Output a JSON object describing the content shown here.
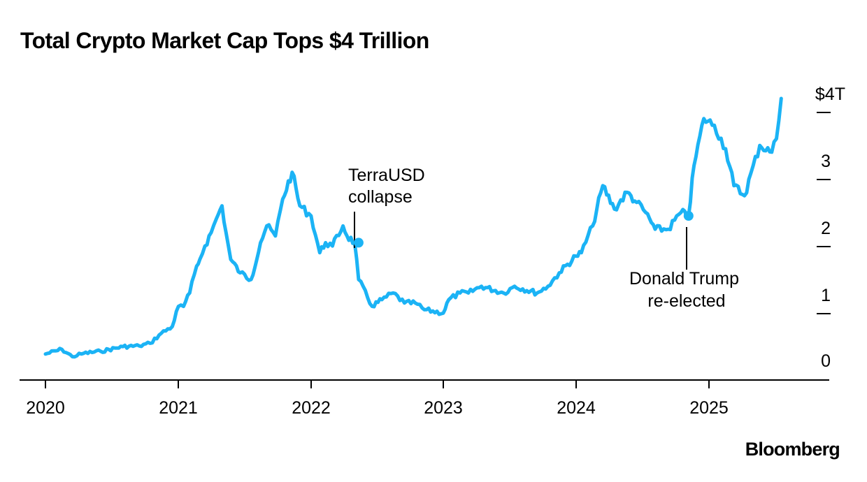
{
  "title": "Total Crypto Market Cap Tops $4 Trillion",
  "source": "Bloomberg",
  "chart_data": {
    "type": "line",
    "title": "Total Crypto Market Cap Tops $4 Trillion",
    "xlabel": "",
    "ylabel": "",
    "y_unit": "trillions of US dollars",
    "ylim": [
      0,
      4
    ],
    "y_ticks": [
      {
        "value": 0,
        "label": "0"
      },
      {
        "value": 1,
        "label": "1"
      },
      {
        "value": 2,
        "label": "2"
      },
      {
        "value": 3,
        "label": "3"
      },
      {
        "value": 4,
        "label": "$4T"
      }
    ],
    "x_ticks": [
      {
        "value": "2020-01-01",
        "label": "2020"
      },
      {
        "value": "2021-01-01",
        "label": "2021"
      },
      {
        "value": "2022-01-01",
        "label": "2022"
      },
      {
        "value": "2023-01-01",
        "label": "2023"
      },
      {
        "value": "2024-01-01",
        "label": "2024"
      },
      {
        "value": "2025-01-01",
        "label": "2025"
      }
    ],
    "grid": false,
    "line_color": "#1bb3f5",
    "series": [
      {
        "x": [
          "2020-01-01",
          "2020-02-15",
          "2020-03-15",
          "2020-04-15",
          "2020-06-01",
          "2020-08-01",
          "2020-09-15",
          "2020-10-15",
          "2020-11-15",
          "2020-12-15",
          "2021-01-01",
          "2021-01-15",
          "2021-02-01",
          "2021-02-20",
          "2021-03-01",
          "2021-03-15",
          "2021-04-01",
          "2021-04-15",
          "2021-05-01",
          "2021-05-12",
          "2021-05-25",
          "2021-06-20",
          "2021-07-20",
          "2021-08-15",
          "2021-09-01",
          "2021-09-25",
          "2021-10-15",
          "2021-11-10",
          "2021-12-01",
          "2022-01-01",
          "2022-01-25",
          "2022-02-10",
          "2022-03-01",
          "2022-03-30",
          "2022-04-10",
          "2022-05-01",
          "2022-05-12",
          "2022-06-18",
          "2022-07-15",
          "2022-08-15",
          "2022-09-15",
          "2022-10-15",
          "2022-11-09",
          "2022-12-31",
          "2023-01-15",
          "2023-02-15",
          "2023-03-10",
          "2023-04-15",
          "2023-06-15",
          "2023-07-15",
          "2023-09-15",
          "2023-10-15",
          "2023-11-15",
          "2023-12-31",
          "2024-01-15",
          "2024-02-15",
          "2024-03-14",
          "2024-04-15",
          "2024-05-20",
          "2024-06-15",
          "2024-07-10",
          "2024-08-05",
          "2024-09-10",
          "2024-10-15",
          "2024-11-05",
          "2024-11-20",
          "2024-12-17",
          "2025-01-15",
          "2025-02-15",
          "2025-03-10",
          "2025-04-08",
          "2025-05-20",
          "2025-06-22",
          "2025-07-05",
          "2025-07-18"
        ],
        "y": [
          0.19,
          0.26,
          0.15,
          0.2,
          0.23,
          0.3,
          0.31,
          0.35,
          0.5,
          0.6,
          0.9,
          0.9,
          1.1,
          1.5,
          1.6,
          1.8,
          2.0,
          2.2,
          2.4,
          2.0,
          1.6,
          1.4,
          1.3,
          1.85,
          2.1,
          1.95,
          2.5,
          2.9,
          2.4,
          2.25,
          1.7,
          1.85,
          1.8,
          2.1,
          1.95,
          1.85,
          1.3,
          0.9,
          1.0,
          1.1,
          0.95,
          0.95,
          0.85,
          0.8,
          1.0,
          1.1,
          1.1,
          1.2,
          1.1,
          1.2,
          1.1,
          1.2,
          1.4,
          1.65,
          1.7,
          2.1,
          2.7,
          2.35,
          2.6,
          2.45,
          2.3,
          2.05,
          2.05,
          2.3,
          2.25,
          3.0,
          3.7,
          3.6,
          3.25,
          2.7,
          2.55,
          3.3,
          3.2,
          3.4,
          4.0
        ]
      }
    ],
    "annotations": [
      {
        "text_lines": [
          "TerraUSD",
          "collapse"
        ],
        "x": "2022-05-12",
        "y": 1.85
      },
      {
        "text_lines": [
          "Donald Trump",
          "re-elected"
        ],
        "x": "2024-11-05",
        "y": 2.25
      }
    ]
  }
}
